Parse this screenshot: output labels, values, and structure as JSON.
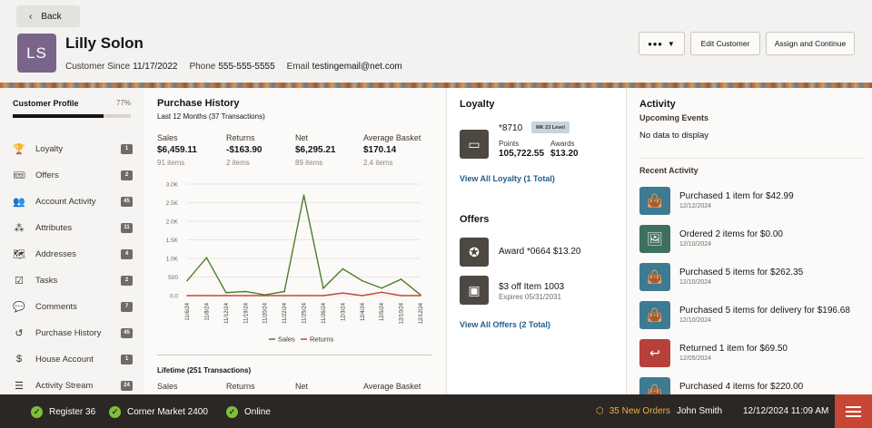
{
  "header": {
    "back_label": "Back",
    "avatar_initials": "LS",
    "customer_name": "Lilly Solon",
    "since_label": "Customer Since",
    "since_value": "11/17/2022",
    "phone_label": "Phone",
    "phone_value": "555-555-5555",
    "email_label": "Email",
    "email_value": "testingemail@net.com",
    "more_label": "•••",
    "edit_label": "Edit Customer",
    "assign_label": "Assign and Continue"
  },
  "sidebar": {
    "profile_title": "Customer Profile",
    "profile_pct": "77%",
    "profile_fraction": 0.77,
    "items": [
      {
        "label": "Loyalty",
        "badge": "1",
        "icon": "trophy-icon",
        "glyph": "🏆"
      },
      {
        "label": "Offers",
        "badge": "2",
        "icon": "ticket-icon",
        "glyph": "🎟"
      },
      {
        "label": "Account Activity",
        "badge": "45",
        "icon": "people-icon",
        "glyph": "👥"
      },
      {
        "label": "Attributes",
        "badge": "11",
        "icon": "nodes-icon",
        "glyph": "⁂"
      },
      {
        "label": "Addresses",
        "badge": "4",
        "icon": "map-icon",
        "glyph": "🗺"
      },
      {
        "label": "Tasks",
        "badge": "2",
        "icon": "checklist-icon",
        "glyph": "☑"
      },
      {
        "label": "Comments",
        "badge": "7",
        "icon": "comment-icon",
        "glyph": "💬"
      },
      {
        "label": "Purchase History",
        "badge": "45",
        "icon": "history-icon",
        "glyph": "↺"
      },
      {
        "label": "House Account",
        "badge": "1",
        "icon": "dollar-icon",
        "glyph": "$"
      },
      {
        "label": "Activity Stream",
        "badge": "24",
        "icon": "stream-icon",
        "glyph": "☰"
      }
    ]
  },
  "purchase": {
    "title": "Purchase History",
    "subtitle": "Last 12 Months (37 Transactions)",
    "stats": [
      {
        "label": "Sales",
        "value": "$6,459.11",
        "items": "91 items"
      },
      {
        "label": "Returns",
        "value": "-$163.90",
        "items": "2 items"
      },
      {
        "label": "Net",
        "value": "$6,295.21",
        "items": "89 items"
      },
      {
        "label": "Average Basket",
        "value": "$170.14",
        "items": "2.4 items"
      }
    ],
    "lifetime": "Lifetime (251 Transactions)",
    "lifetime_labels": [
      "Sales",
      "Returns",
      "Net",
      "Average Basket"
    ]
  },
  "chart_data": {
    "type": "line",
    "x": [
      "11/6/24",
      "11/8/24",
      "11/12/24",
      "11/19/24",
      "11/20/24",
      "11/22/24",
      "11/25/24",
      "11/26/24",
      "12/3/24",
      "12/4/24",
      "12/5/24",
      "12/10/24",
      "12/12/24"
    ],
    "ylim": [
      0,
      3000
    ],
    "yticks": [
      "0.0",
      "500",
      "1.0K",
      "1.5K",
      "2.0K",
      "2.5K",
      "3.0K"
    ],
    "series": [
      {
        "name": "Sales",
        "color": "#4f7d2a",
        "values": [
          400,
          1020,
          80,
          110,
          20,
          110,
          2700,
          200,
          720,
          400,
          200,
          440,
          20
        ]
      },
      {
        "name": "Returns",
        "color": "#c74634",
        "values": [
          0,
          0,
          0,
          0,
          0,
          0,
          0,
          0,
          70,
          0,
          90,
          0,
          0
        ]
      }
    ],
    "legend": "bottom"
  },
  "loyalty": {
    "title": "Loyalty",
    "card_number": "*8710",
    "tier": "MK 23 Level",
    "points_label": "Points",
    "points_value": "105,722.55",
    "awards_label": "Awards",
    "awards_value": "$13.20",
    "view_all": "View All Loyalty (1 Total)"
  },
  "offers": {
    "title": "Offers",
    "items": [
      {
        "line1": "Award *0664 $13.20",
        "line2": ""
      },
      {
        "line1": "$3 off Item 1003",
        "line2": "Expires 05/31/2031"
      }
    ],
    "view_all": "View All Offers (2 Total)"
  },
  "activity": {
    "title": "Activity",
    "upcoming_label": "Upcoming Events",
    "no_data": "No data to display",
    "recent_label": "Recent Activity",
    "items": [
      {
        "title": "Purchased 1 item for $42.99",
        "date": "12/12/2024",
        "color": "#3f7a93",
        "glyph": "👜",
        "icon": "bag-icon"
      },
      {
        "title": "Ordered 2 items for $0.00",
        "date": "12/10/2024",
        "color": "#3f6f5e",
        "glyph": "🖼",
        "icon": "order-icon"
      },
      {
        "title": "Purchased 5 items for $262.35",
        "date": "12/10/2024",
        "color": "#3f7a93",
        "glyph": "👜",
        "icon": "bag-icon"
      },
      {
        "title": "Purchased 5 items for delivery for $196.68",
        "date": "12/10/2024",
        "color": "#3f7a93",
        "glyph": "👜",
        "icon": "bag-icon"
      },
      {
        "title": "Returned 1 item for $69.50",
        "date": "12/05/2024",
        "color": "#b8403a",
        "glyph": "↩",
        "icon": "return-icon"
      },
      {
        "title": "Purchased 4 items for $220.00",
        "date": "",
        "color": "#3f7a93",
        "glyph": "👜",
        "icon": "bag-icon"
      }
    ]
  },
  "footer": {
    "register": "Register 36",
    "store": "Corner Market 2400",
    "status": "Online",
    "orders": "35 New Orders",
    "user": "John Smith",
    "datetime": "12/12/2024 11:09 AM"
  }
}
